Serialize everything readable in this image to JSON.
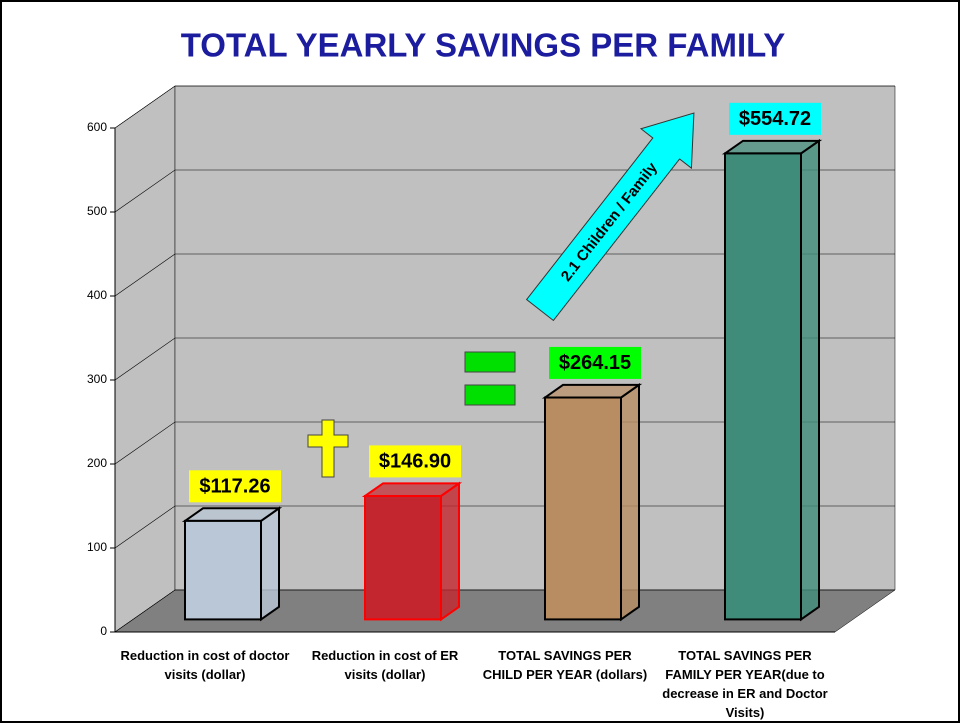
{
  "chart_data": {
    "type": "bar3d",
    "title": "TOTAL YEARLY SAVINGS PER FAMILY",
    "categories": [
      "Reduction in cost of doctor visits (dollar)",
      "Reduction in cost of ER visits (dollar)",
      "TOTAL SAVINGS PER CHILD PER YEAR (dollars)",
      "TOTAL SAVINGS PER FAMILY PER YEAR(due to decrease in ER and Doctor Visits)"
    ],
    "values": [
      117.26,
      146.9,
      264.15,
      554.72
    ],
    "value_labels": [
      "$117.26",
      "$146.90",
      "$264.15",
      "$554.72"
    ],
    "colors": [
      "#b9c7d6",
      "#c3262e",
      "#b98d62",
      "#3f8c7a"
    ],
    "outline_colors": [
      "#000000",
      "#ff0000",
      "#000000",
      "#000000"
    ],
    "label_colors": [
      "#ffff00",
      "#ffff00",
      "#00ff00",
      "#00ffff"
    ],
    "annotation": "2.1 Children / Family",
    "ylim": [
      0,
      600
    ],
    "yticks": [
      0,
      100,
      200,
      300,
      400,
      500,
      600
    ],
    "grid": true
  }
}
